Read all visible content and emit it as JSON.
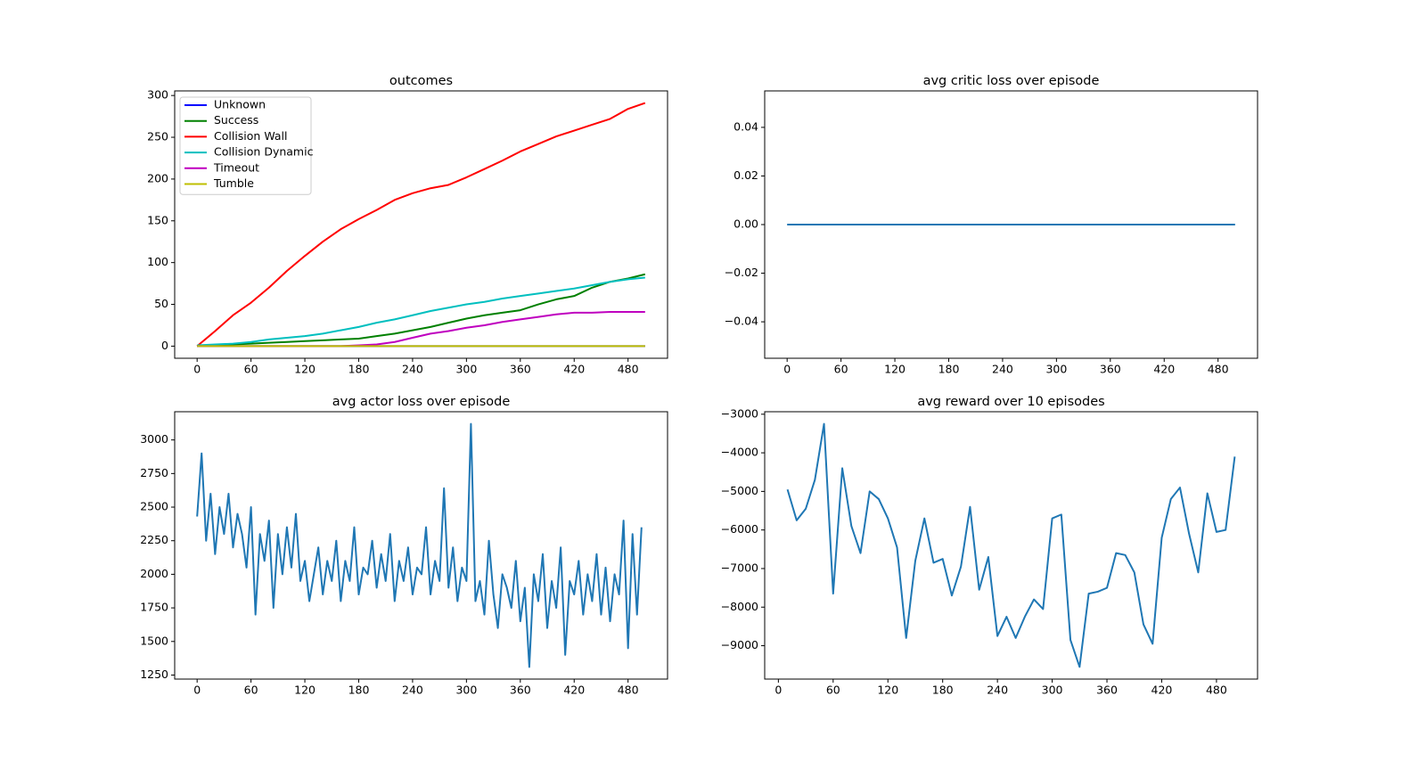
{
  "chart_data": [
    {
      "type": "line",
      "title": "outcomes",
      "legend": "upper left",
      "x": [
        0,
        20,
        40,
        60,
        80,
        100,
        120,
        140,
        160,
        180,
        200,
        220,
        240,
        260,
        280,
        300,
        320,
        340,
        360,
        380,
        400,
        420,
        440,
        460,
        480,
        499
      ],
      "series": [
        {
          "name": "Unknown",
          "color": "#0000ff",
          "values": [
            0,
            0,
            0,
            0,
            0,
            0,
            0,
            0,
            0,
            0,
            0,
            0,
            0,
            0,
            0,
            0,
            0,
            0,
            0,
            0,
            0,
            0,
            0,
            0,
            0,
            0
          ]
        },
        {
          "name": "Success",
          "color": "#008000",
          "values": [
            0,
            1,
            2,
            3,
            4,
            5,
            6,
            7,
            8,
            9,
            12,
            15,
            19,
            23,
            28,
            33,
            37,
            40,
            43,
            50,
            56,
            60,
            70,
            77,
            81,
            86
          ]
        },
        {
          "name": "Collision Wall",
          "color": "#ff0000",
          "values": [
            0,
            18,
            37,
            52,
            70,
            90,
            108,
            125,
            140,
            152,
            163,
            175,
            183,
            189,
            193,
            202,
            212,
            222,
            233,
            242,
            251,
            258,
            265,
            272,
            284,
            291
          ]
        },
        {
          "name": "Collision Dynamic",
          "color": "#00bfbf",
          "values": [
            1,
            2,
            3,
            5,
            8,
            10,
            12,
            15,
            19,
            23,
            28,
            32,
            37,
            42,
            46,
            50,
            53,
            57,
            60,
            63,
            66,
            69,
            73,
            77,
            80,
            82
          ]
        },
        {
          "name": "Timeout",
          "color": "#bf00bf",
          "values": [
            0,
            0,
            0,
            0,
            0,
            0,
            0,
            0,
            0,
            1,
            2,
            5,
            10,
            15,
            18,
            22,
            25,
            29,
            32,
            35,
            38,
            40,
            40,
            41,
            41,
            41
          ]
        },
        {
          "name": "Tumble",
          "color": "#bfbf00",
          "values": [
            0,
            0,
            0,
            0,
            0,
            0,
            0,
            0,
            0,
            0,
            0,
            0,
            0,
            0,
            0,
            0,
            0,
            0,
            0,
            0,
            0,
            0,
            0,
            0,
            0,
            0
          ]
        }
      ],
      "xlim": [
        -25,
        524
      ],
      "ylim": [
        -14.5,
        305.5
      ],
      "xticks": [
        0,
        60,
        120,
        180,
        240,
        300,
        360,
        420,
        480
      ],
      "yticks": [
        0,
        50,
        100,
        150,
        200,
        250,
        300
      ]
    },
    {
      "type": "line",
      "title": "avg critic loss over episode",
      "color": "#1f77b4",
      "x": [
        0,
        499
      ],
      "values": [
        0,
        0
      ],
      "xlim": [
        -25,
        524
      ],
      "ylim": [
        -0.055,
        0.055
      ],
      "xticks": [
        0,
        60,
        120,
        180,
        240,
        300,
        360,
        420,
        480
      ],
      "yticks": [
        {
          "value": -0.04,
          "label": "−0.04"
        },
        {
          "value": -0.02,
          "label": "−0.02"
        },
        {
          "value": 0,
          "label": "0.00"
        },
        0.02,
        0.04
      ]
    },
    {
      "type": "line",
      "title": "avg actor loss over episode",
      "color": "#1f77b4",
      "x": [
        0,
        5,
        10,
        15,
        20,
        25,
        30,
        35,
        40,
        45,
        50,
        55,
        60,
        65,
        70,
        75,
        80,
        85,
        90,
        95,
        100,
        105,
        110,
        115,
        120,
        125,
        130,
        135,
        140,
        145,
        150,
        155,
        160,
        165,
        170,
        175,
        180,
        185,
        190,
        195,
        200,
        205,
        210,
        215,
        220,
        225,
        230,
        235,
        240,
        245,
        250,
        255,
        260,
        265,
        270,
        275,
        280,
        285,
        290,
        295,
        300,
        305,
        310,
        315,
        320,
        325,
        330,
        335,
        340,
        345,
        350,
        355,
        360,
        365,
        370,
        375,
        380,
        385,
        390,
        395,
        400,
        405,
        410,
        415,
        420,
        425,
        430,
        435,
        440,
        445,
        450,
        455,
        460,
        465,
        470,
        475,
        480,
        485,
        490,
        495
      ],
      "values": [
        2430,
        2900,
        2250,
        2600,
        2150,
        2500,
        2300,
        2600,
        2200,
        2450,
        2300,
        2050,
        2500,
        1700,
        2300,
        2100,
        2400,
        1750,
        2300,
        2000,
        2350,
        2050,
        2450,
        1950,
        2100,
        1800,
        2000,
        2200,
        1850,
        2100,
        1950,
        2250,
        1800,
        2100,
        1950,
        2350,
        1850,
        2050,
        2000,
        2250,
        1900,
        2150,
        1950,
        2300,
        1800,
        2100,
        1950,
        2200,
        1850,
        2050,
        2000,
        2350,
        1850,
        2100,
        1950,
        2640,
        1900,
        2200,
        1800,
        2050,
        1950,
        3120,
        1800,
        1950,
        1700,
        2250,
        1850,
        1600,
        2000,
        1900,
        1750,
        2100,
        1650,
        1900,
        1310,
        2000,
        1800,
        2150,
        1600,
        1950,
        1750,
        2200,
        1400,
        1950,
        1850,
        2100,
        1700,
        2000,
        1800,
        2150,
        1700,
        2050,
        1650,
        2000,
        1850,
        2400,
        1450,
        2300,
        1700,
        2350
      ],
      "xlim": [
        -25,
        524
      ],
      "ylim": [
        1220,
        3210
      ],
      "xticks": [
        0,
        60,
        120,
        180,
        240,
        300,
        360,
        420,
        480
      ],
      "yticks": [
        1250,
        1500,
        1750,
        2000,
        2250,
        2500,
        2750,
        3000
      ]
    },
    {
      "type": "line",
      "title": "avg reward over 10 episodes",
      "color": "#1f77b4",
      "x": [
        10,
        20,
        30,
        40,
        50,
        60,
        70,
        80,
        90,
        100,
        110,
        120,
        130,
        140,
        150,
        160,
        170,
        180,
        190,
        200,
        210,
        220,
        230,
        240,
        250,
        260,
        270,
        280,
        290,
        300,
        310,
        320,
        330,
        340,
        350,
        360,
        370,
        380,
        390,
        400,
        410,
        420,
        430,
        440,
        450,
        460,
        470,
        480,
        490,
        500
      ],
      "values": [
        -4950,
        -5750,
        -5450,
        -4700,
        -3250,
        -7650,
        -4400,
        -5900,
        -6600,
        -5000,
        -5200,
        -5700,
        -6450,
        -8800,
        -6800,
        -5700,
        -6850,
        -6750,
        -7700,
        -6950,
        -5400,
        -7550,
        -6700,
        -8750,
        -8250,
        -8800,
        -8250,
        -7800,
        -8050,
        -5700,
        -5600,
        -8850,
        -9550,
        -7650,
        -7600,
        -7500,
        -6600,
        -6650,
        -7100,
        -8450,
        -8950,
        -6200,
        -5200,
        -4900,
        -6100,
        -7100,
        -5050,
        -6050,
        -6000,
        -4100
      ],
      "xlim": [
        -15,
        525
      ],
      "ylim": [
        -9865,
        -2935
      ],
      "xticks": [
        0,
        60,
        120,
        180,
        240,
        300,
        360,
        420,
        480
      ],
      "yticks": [
        {
          "value": -9000,
          "label": "−9000"
        },
        {
          "value": -8000,
          "label": "−8000"
        },
        {
          "value": -7000,
          "label": "−7000"
        },
        {
          "value": -6000,
          "label": "−6000"
        },
        {
          "value": -5000,
          "label": "−5000"
        },
        {
          "value": -4000,
          "label": "−4000"
        },
        {
          "value": -3000,
          "label": "−3000"
        }
      ]
    }
  ]
}
